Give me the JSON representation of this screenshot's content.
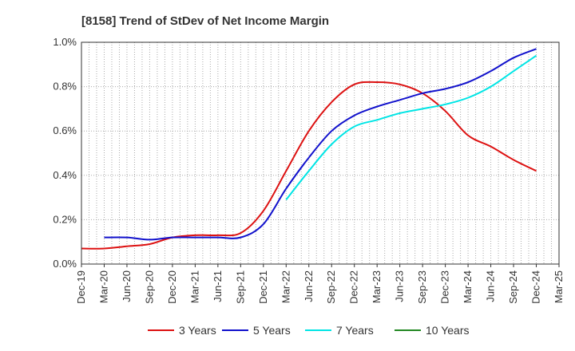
{
  "chart_data": {
    "type": "line",
    "title": "[8158]  Trend of StDev of Net Income Margin",
    "xlabel": "",
    "ylabel": "",
    "x": [
      "Dec-19",
      "Mar-20",
      "Jun-20",
      "Sep-20",
      "Dec-20",
      "Mar-21",
      "Jun-21",
      "Sep-21",
      "Dec-21",
      "Mar-22",
      "Jun-22",
      "Sep-22",
      "Dec-22",
      "Mar-23",
      "Jun-23",
      "Sep-23",
      "Dec-23",
      "Mar-24",
      "Jun-24",
      "Sep-24",
      "Dec-24",
      "Mar-25"
    ],
    "ylim": [
      0,
      1.0
    ],
    "yticks": [
      0.0,
      0.2,
      0.4,
      0.6,
      0.8,
      1.0
    ],
    "ytick_labels": [
      "0.0%",
      "0.2%",
      "0.4%",
      "0.6%",
      "0.8%",
      "1.0%"
    ],
    "grid": true,
    "legend_position": "bottom",
    "series": [
      {
        "name": "3 Years",
        "color": "#dd1111",
        "values": [
          0.07,
          0.07,
          0.08,
          0.09,
          0.12,
          0.13,
          0.13,
          0.14,
          0.24,
          0.42,
          0.6,
          0.73,
          0.81,
          0.82,
          0.81,
          0.77,
          0.69,
          0.58,
          0.53,
          0.47,
          0.42,
          null
        ]
      },
      {
        "name": "5 Years",
        "color": "#1111cc",
        "values": [
          null,
          0.12,
          0.12,
          0.11,
          0.12,
          0.12,
          0.12,
          0.12,
          0.18,
          0.34,
          0.48,
          0.6,
          0.67,
          0.71,
          0.74,
          0.77,
          0.79,
          0.82,
          0.87,
          0.93,
          0.97,
          null
        ]
      },
      {
        "name": "7 Years",
        "color": "#00e5e5",
        "values": [
          null,
          null,
          null,
          null,
          null,
          null,
          null,
          null,
          null,
          0.29,
          0.42,
          0.54,
          0.62,
          0.65,
          0.68,
          0.7,
          0.72,
          0.75,
          0.8,
          0.87,
          0.94,
          null
        ]
      },
      {
        "name": "10 Years",
        "color": "#228822",
        "values": [
          null,
          null,
          null,
          null,
          null,
          null,
          null,
          null,
          null,
          null,
          null,
          null,
          null,
          null,
          null,
          null,
          null,
          null,
          null,
          null,
          null,
          null
        ]
      }
    ]
  }
}
